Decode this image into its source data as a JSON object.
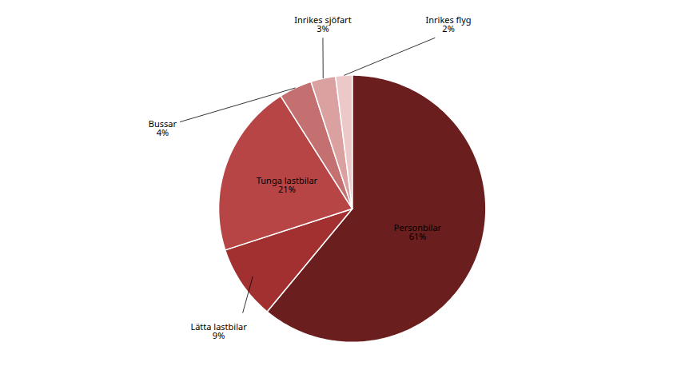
{
  "chart_data": {
    "type": "pie",
    "categories": [
      "Personbilar",
      "Lätta lastbilar",
      "Tunga lastbilar",
      "Bussar",
      "Inrikes sjöfart",
      "Inrikes flyg"
    ],
    "values": [
      61,
      9,
      21,
      4,
      3,
      2
    ],
    "value_labels": [
      "61%",
      "9%",
      "21%",
      "4%",
      "3%",
      "2%"
    ],
    "colors": [
      "#6b1e1e",
      "#a33030",
      "#b84545",
      "#c47070",
      "#dba0a0",
      "#ecc8c8"
    ],
    "data_labels": true
  }
}
